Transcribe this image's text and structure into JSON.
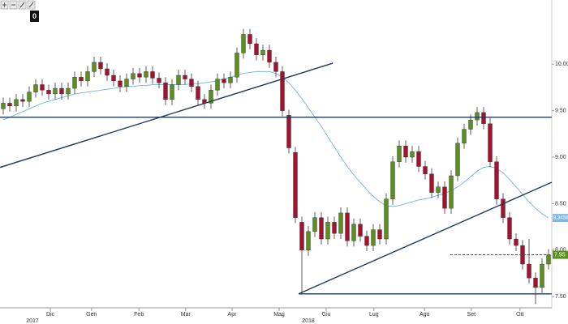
{
  "chart_data": {
    "type": "candlestick",
    "up_color": "#5b8f22",
    "down_color": "#a3122e",
    "xlim": [
      -0.5,
      84.5
    ],
    "ylim": [
      7.38,
      10.69
    ],
    "yticks": [
      {
        "value": 10,
        "label": "10.00"
      },
      {
        "value": 9.5,
        "label": "9.50"
      },
      {
        "value": 9,
        "label": "9.00"
      },
      {
        "value": 8.5,
        "label": "8.50"
      },
      {
        "value": 8,
        "label": "8.00"
      },
      {
        "value": 7.5,
        "label": "7.50"
      }
    ],
    "xticks": [
      {
        "value": 7.25,
        "label": "Dic"
      },
      {
        "value": 13.6,
        "label": "Gen"
      },
      {
        "value": 20.9,
        "label": "Feb"
      },
      {
        "value": 28.1,
        "label": "Mar"
      },
      {
        "value": 35.25,
        "label": "Apr"
      },
      {
        "value": 42.5,
        "label": "Mag"
      },
      {
        "value": 49.75,
        "label": "Giu"
      },
      {
        "value": 57.1,
        "label": "Lug"
      },
      {
        "value": 64.9,
        "label": "Ago"
      },
      {
        "value": 72.1,
        "label": "Set"
      },
      {
        "value": 79.6,
        "label": "Ott"
      }
    ],
    "year_labels": [
      {
        "value": 4.5,
        "label": "2017"
      },
      {
        "value": 47,
        "label": "2018"
      }
    ],
    "open": [
      9.52,
      9.58,
      9.55,
      9.62,
      9.6,
      9.7,
      9.78,
      9.72,
      9.68,
      9.74,
      9.68,
      9.74,
      9.86,
      9.82,
      9.92,
      10.02,
      9.95,
      9.88,
      9.82,
      9.76,
      9.84,
      9.9,
      9.86,
      9.92,
      9.85,
      9.8,
      9.62,
      9.78,
      9.88,
      9.84,
      9.76,
      9.62,
      9.58,
      9.72,
      9.84,
      9.8,
      9.86,
      10.12,
      10.32,
      10.22,
      10.1,
      10.15,
      10.02,
      9.92,
      9.45,
      9.05,
      8.3,
      8.0,
      8.2,
      8.35,
      8.12,
      8.3,
      8.18,
      8.4,
      8.1,
      8.28,
      8.15,
      8.05,
      8.22,
      8.12,
      8.55,
      8.95,
      9.12,
      9.0,
      9.06,
      8.9,
      8.82,
      8.62,
      8.68,
      8.45,
      8.8,
      9.15,
      9.3,
      9.4,
      9.48,
      9.36,
      8.95,
      8.55,
      8.35,
      8.12,
      8.05,
      7.85,
      7.7,
      7.6,
      7.85
    ],
    "high": [
      9.64,
      9.64,
      9.68,
      9.68,
      9.76,
      9.84,
      9.84,
      9.78,
      9.8,
      9.8,
      9.8,
      9.92,
      9.92,
      9.98,
      10.08,
      10.08,
      10.01,
      9.94,
      9.88,
      9.9,
      9.96,
      9.96,
      9.98,
      9.98,
      9.91,
      9.86,
      9.84,
      9.94,
      9.94,
      9.9,
      9.82,
      9.68,
      9.78,
      9.9,
      9.9,
      9.92,
      10.18,
      10.38,
      10.38,
      10.28,
      10.21,
      10.21,
      10.08,
      9.98,
      9.51,
      9.11,
      8.36,
      8.26,
      8.41,
      8.41,
      8.36,
      8.36,
      8.46,
      8.46,
      8.34,
      8.34,
      8.21,
      8.28,
      8.28,
      8.61,
      9.01,
      9.18,
      9.18,
      9.12,
      9.12,
      8.96,
      8.88,
      8.74,
      8.74,
      8.86,
      9.21,
      9.36,
      9.46,
      9.54,
      9.54,
      9.42,
      9.01,
      8.61,
      8.41,
      8.18,
      8.11,
      8.12,
      7.76,
      7.91,
      8.01
    ],
    "low": [
      9.46,
      9.49,
      9.49,
      9.54,
      9.54,
      9.64,
      9.66,
      9.62,
      9.62,
      9.62,
      9.62,
      9.68,
      9.76,
      9.76,
      9.86,
      9.89,
      9.82,
      9.76,
      9.7,
      9.7,
      9.78,
      9.8,
      9.8,
      9.79,
      9.74,
      9.56,
      9.56,
      9.72,
      9.78,
      9.7,
      9.56,
      9.52,
      9.52,
      9.66,
      9.74,
      9.74,
      9.8,
      10.06,
      10.16,
      10.04,
      10.04,
      9.96,
      9.86,
      9.44,
      9.04,
      8.29,
      7.53,
      7.94,
      8.14,
      8.06,
      8.06,
      8.12,
      8.12,
      8.04,
      8.04,
      8.09,
      7.99,
      7.99,
      8.06,
      8.06,
      8.49,
      8.89,
      8.94,
      8.94,
      8.84,
      8.76,
      8.56,
      8.56,
      8.39,
      8.39,
      8.74,
      9.09,
      9.24,
      9.34,
      9.3,
      8.89,
      8.49,
      8.29,
      8.06,
      7.99,
      7.79,
      7.64,
      7.42,
      7.54,
      7.79
    ],
    "close": [
      9.58,
      9.55,
      9.62,
      9.6,
      9.7,
      9.78,
      9.72,
      9.68,
      9.74,
      9.68,
      9.74,
      9.86,
      9.82,
      9.92,
      10.02,
      9.95,
      9.88,
      9.82,
      9.76,
      9.84,
      9.9,
      9.86,
      9.92,
      9.85,
      9.8,
      9.62,
      9.78,
      9.88,
      9.84,
      9.76,
      9.62,
      9.58,
      9.72,
      9.84,
      9.8,
      9.86,
      10.12,
      10.32,
      10.22,
      10.1,
      10.15,
      10.02,
      9.92,
      9.5,
      9.1,
      8.35,
      8.0,
      8.2,
      8.35,
      8.12,
      8.3,
      8.18,
      8.4,
      8.1,
      8.28,
      8.15,
      8.05,
      8.22,
      8.12,
      8.55,
      8.95,
      9.12,
      9.0,
      9.06,
      8.9,
      8.82,
      8.62,
      8.68,
      8.45,
      8.8,
      9.15,
      9.3,
      9.4,
      9.48,
      9.36,
      8.95,
      8.55,
      8.35,
      8.12,
      8.05,
      7.85,
      7.7,
      7.6,
      7.85,
      7.95
    ],
    "ma": {
      "color": "#7db9e8",
      "values": [
        9.4,
        9.43,
        9.46,
        9.49,
        9.52,
        9.55,
        9.58,
        9.6,
        9.62,
        9.64,
        9.66,
        9.68,
        9.69,
        9.7,
        9.71,
        9.72,
        9.73,
        9.74,
        9.75,
        9.76,
        9.76,
        9.77,
        9.77,
        9.78,
        9.78,
        9.78,
        9.78,
        9.78,
        9.78,
        9.79,
        9.79,
        9.8,
        9.81,
        9.82,
        9.84,
        9.86,
        9.88,
        9.9,
        9.91,
        9.92,
        9.92,
        9.92,
        9.9,
        9.86,
        9.8,
        9.72,
        9.63,
        9.53,
        9.43,
        9.33,
        9.22,
        9.11,
        9.0,
        8.9,
        8.81,
        8.73,
        8.65,
        8.58,
        8.52,
        8.48,
        8.47,
        8.48,
        8.5,
        8.52,
        8.54,
        8.55,
        8.57,
        8.59,
        8.61,
        8.64,
        8.68,
        8.73,
        8.79,
        8.85,
        8.89,
        8.9,
        8.88,
        8.83,
        8.76,
        8.68,
        8.6,
        8.52,
        8.45,
        8.39,
        8.3458
      ]
    },
    "last_color": "#5b8f22",
    "line_color": "#1f3a5a",
    "lines": [
      {
        "x": [
          -0.5,
          50.75
        ],
        "y": [
          8.89,
          10.01
        ]
      },
      {
        "x": [
          -0.5,
          84.5
        ],
        "y": [
          9.43,
          9.43
        ]
      },
      {
        "x": [
          45.5,
          84.5
        ],
        "y": [
          7.53,
          8.73
        ]
      },
      {
        "x": [
          45.5,
          84.5
        ],
        "y": [
          7.53,
          7.53
        ]
      }
    ],
    "toolbar_zoom": "0"
  }
}
